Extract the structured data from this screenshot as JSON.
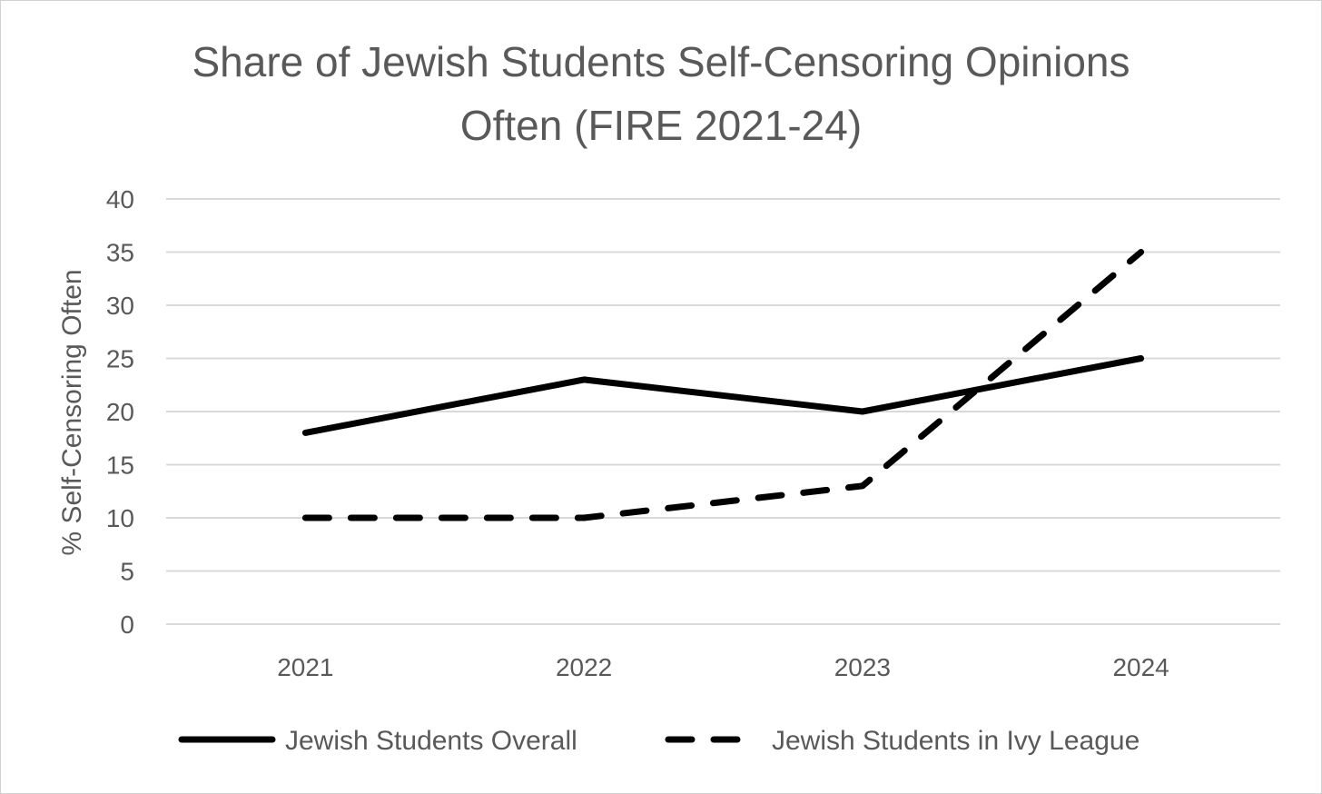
{
  "chart_data": {
    "type": "line",
    "title_lines": [
      "Share of Jewish Students Self-Censoring Opinions",
      "Often (FIRE 2021-24)"
    ],
    "title": "Share of Jewish Students Self-Censoring Opinions Often (FIRE 2021-24)",
    "xlabel": "",
    "ylabel": "% Self-Censoring Often",
    "ylim": [
      0,
      40
    ],
    "yticks": [
      "0",
      "5",
      "10",
      "15",
      "20",
      "25",
      "30",
      "35",
      "40"
    ],
    "categories": [
      "2021",
      "2022",
      "2023",
      "2024"
    ],
    "grid": true,
    "legend_position": "bottom",
    "series": [
      {
        "name": "Jewish Students Overall",
        "values": [
          18,
          23,
          20,
          25
        ],
        "style": "solid",
        "color": "#000000"
      },
      {
        "name": "Jewish Students in Ivy League",
        "values": [
          10,
          10,
          13,
          35
        ],
        "style": "dashed",
        "color": "#000000"
      }
    ]
  }
}
